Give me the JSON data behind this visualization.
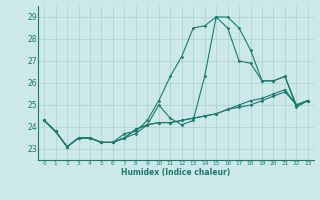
{
  "xlabel": "Humidex (Indice chaleur)",
  "ylabel": "",
  "xlim": [
    -0.5,
    23.5
  ],
  "ylim": [
    22.5,
    29.5
  ],
  "yticks": [
    23,
    24,
    25,
    26,
    27,
    28,
    29
  ],
  "xticks": [
    0,
    1,
    2,
    3,
    4,
    5,
    6,
    7,
    8,
    9,
    10,
    11,
    12,
    13,
    14,
    15,
    16,
    17,
    18,
    19,
    20,
    21,
    22,
    23
  ],
  "bg_color": "#cce8e8",
  "grid_color": "#aacfcf",
  "line_color": "#1a7a6e",
  "lines": [
    [
      24.3,
      23.8,
      23.1,
      23.5,
      23.5,
      23.3,
      23.3,
      23.5,
      23.7,
      24.1,
      25.0,
      24.4,
      24.1,
      24.3,
      26.3,
      29.0,
      29.0,
      28.5,
      27.5,
      26.1,
      26.1,
      26.3,
      25.0,
      25.2
    ],
    [
      24.3,
      23.8,
      23.1,
      23.5,
      23.5,
      23.3,
      23.3,
      23.7,
      23.8,
      24.3,
      25.2,
      26.3,
      27.2,
      28.5,
      28.6,
      29.0,
      28.5,
      27.0,
      26.9,
      26.1,
      26.1,
      26.3,
      24.9,
      25.2
    ],
    [
      24.3,
      23.8,
      23.1,
      23.5,
      23.5,
      23.3,
      23.3,
      23.5,
      23.9,
      24.1,
      24.2,
      24.2,
      24.3,
      24.4,
      24.5,
      24.6,
      24.8,
      24.9,
      25.0,
      25.2,
      25.4,
      25.6,
      25.0,
      25.2
    ],
    [
      24.3,
      23.8,
      23.1,
      23.5,
      23.5,
      23.3,
      23.3,
      23.5,
      23.9,
      24.1,
      24.2,
      24.2,
      24.3,
      24.4,
      24.5,
      24.6,
      24.8,
      25.0,
      25.2,
      25.3,
      25.5,
      25.7,
      25.0,
      25.2
    ]
  ]
}
